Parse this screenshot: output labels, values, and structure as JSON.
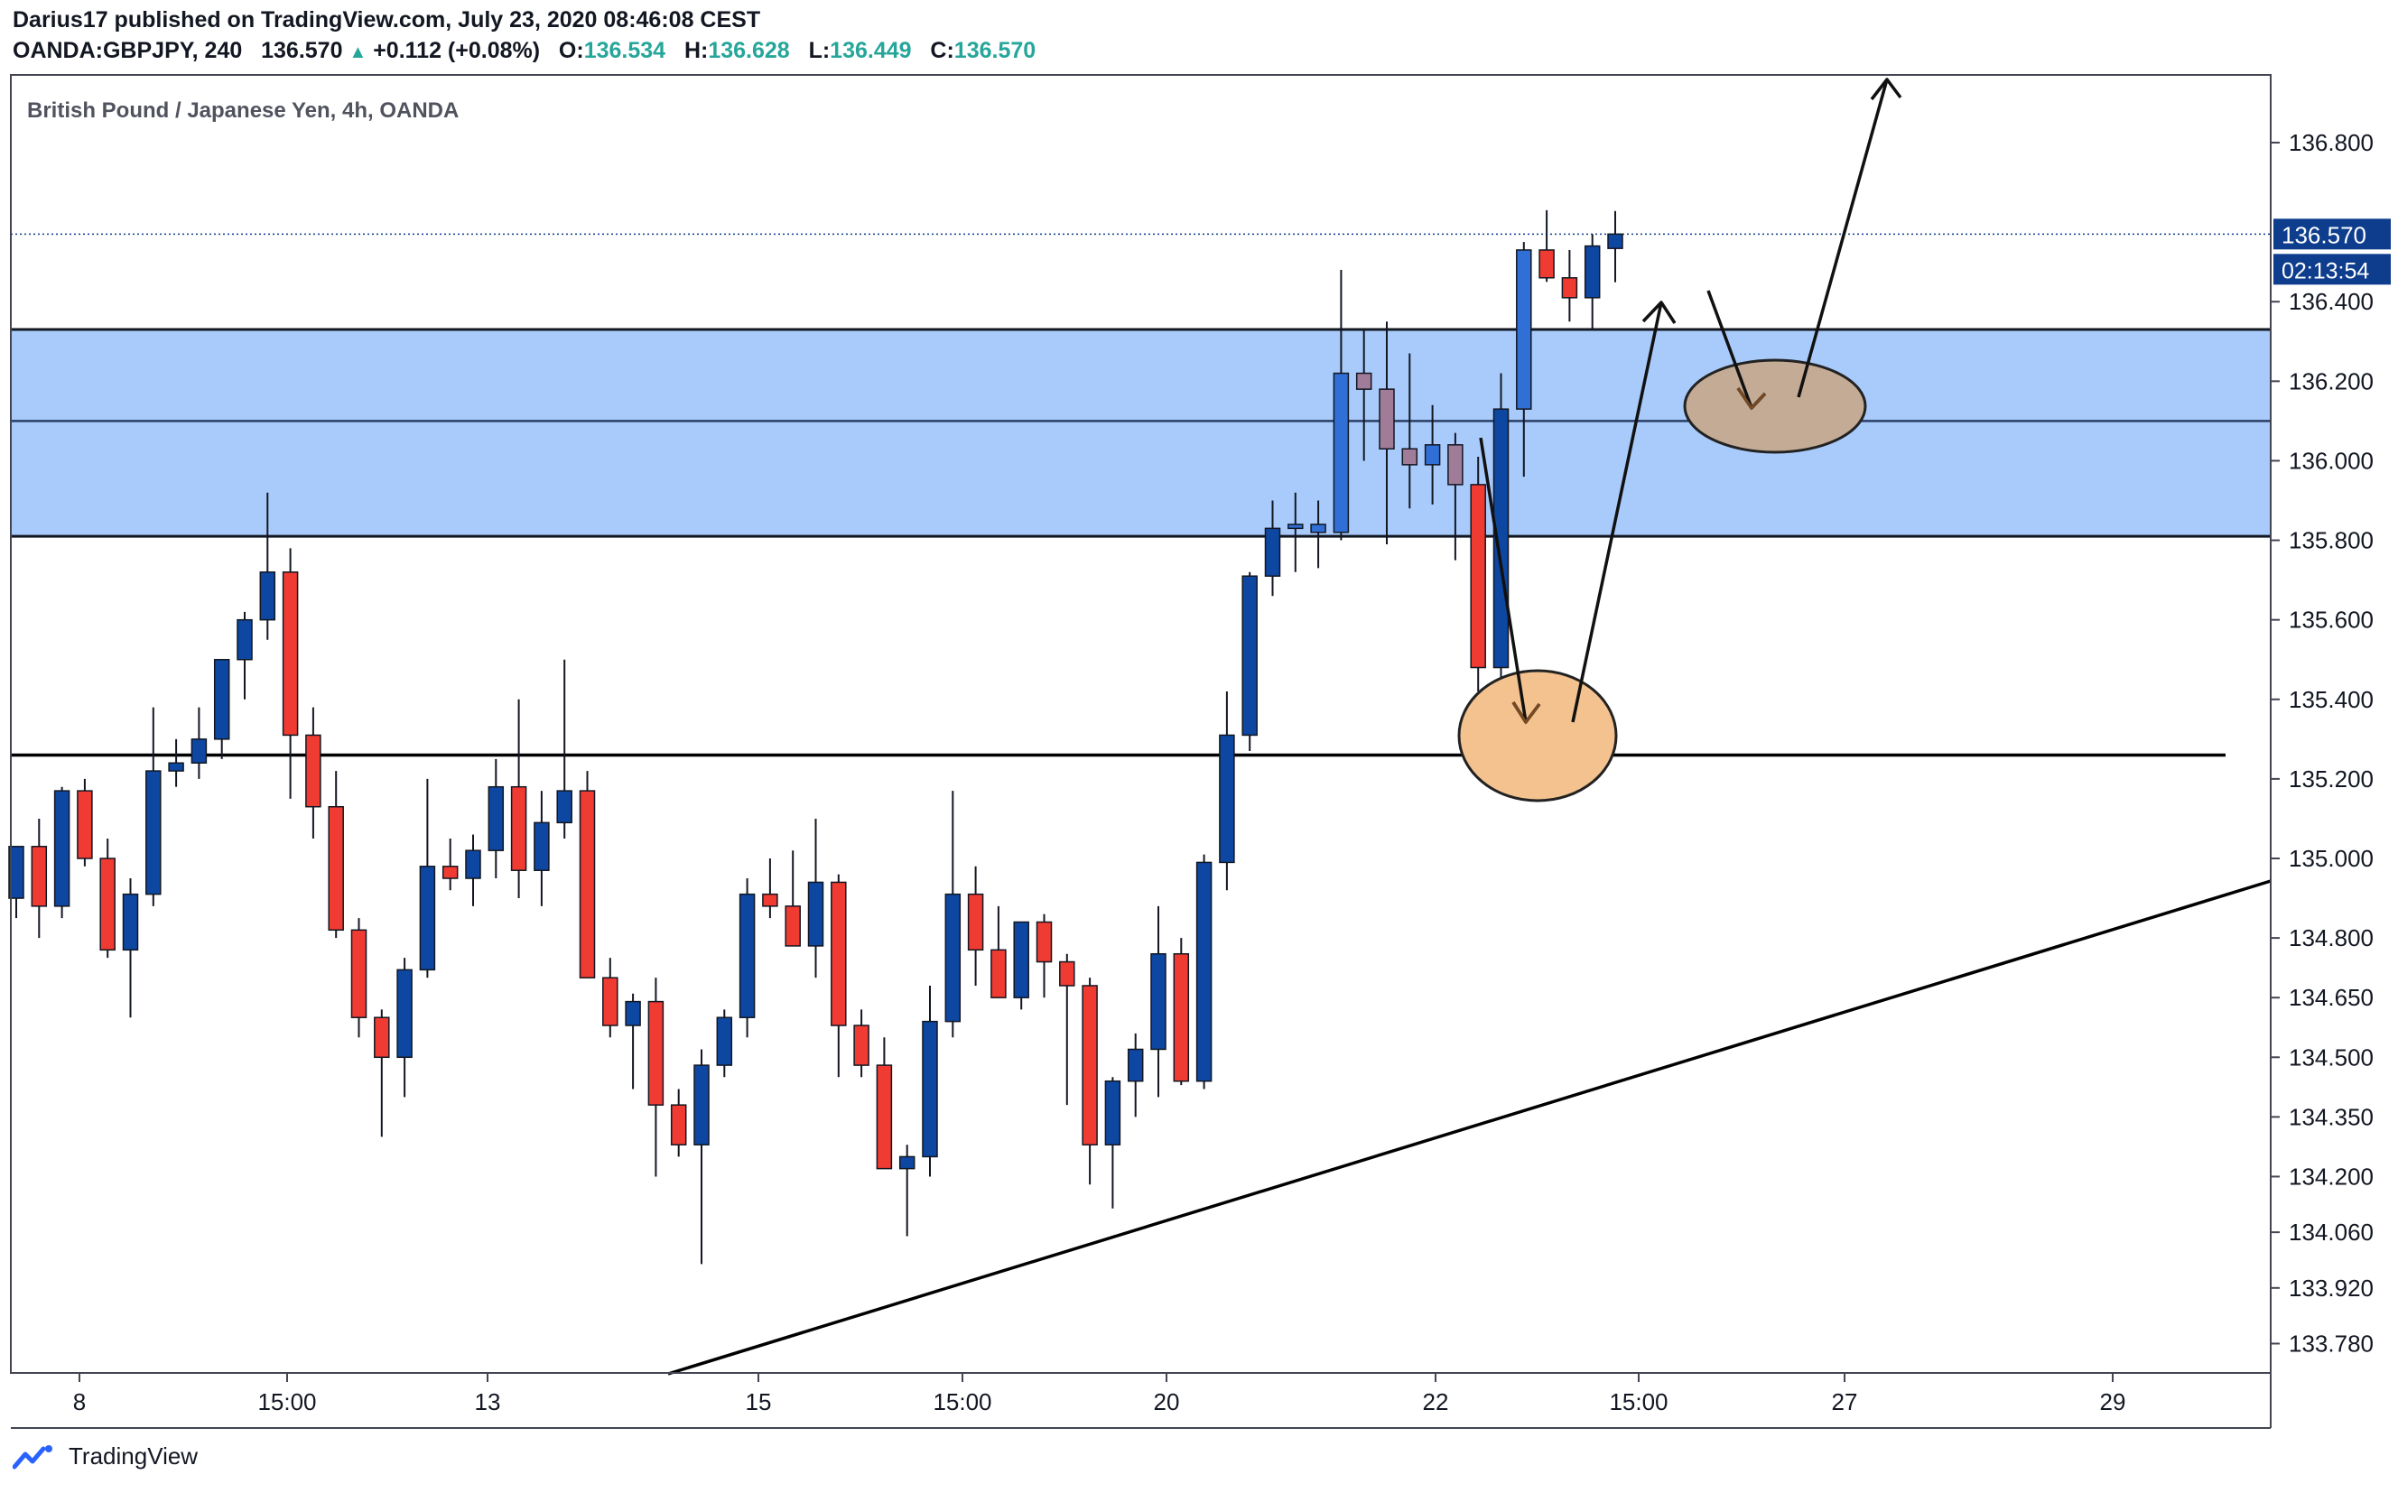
{
  "header": {
    "line1": "Darius17 published on TradingView.com, July 23, 2020 08:46:08 CEST",
    "symbol": "OANDA:GBPJPY, 240",
    "last": "136.570",
    "change": "+0.112 (+0.08%)",
    "o_label": "O:",
    "o": "136.534",
    "h_label": "H:",
    "h": "136.628",
    "l_label": "L:",
    "l": "136.449",
    "c_label": "C:",
    "c": "136.570"
  },
  "footer": {
    "brand": "TradingView"
  },
  "colors": {
    "up": "#0d47a1",
    "down": "#ef3b32",
    "zone": "#a9cbfb",
    "zone_candle_up": "#2f6fd6",
    "zone_candle_down": "#a07c98",
    "ellipse_low": "#f3c28f",
    "ellipse_high": "#c3ab95",
    "price_badge": "#0d3d8c"
  },
  "chart_data": {
    "type": "candlestick",
    "title": "British Pound / Japanese Yen, 4h, OANDA",
    "ylim": [
      133.7,
      137.0
    ],
    "y_ticks": [
      "136.800",
      "136.400",
      "136.200",
      "136.000",
      "135.800",
      "135.600",
      "135.400",
      "135.200",
      "135.000",
      "134.800",
      "134.650",
      "134.500",
      "134.350",
      "134.200",
      "134.060",
      "133.920",
      "133.780"
    ],
    "x_ticks": [
      "8",
      "15:00",
      "13",
      "15",
      "15:00",
      "20",
      "22",
      "15:00",
      "27",
      "29"
    ],
    "last_price": "136.570",
    "countdown": "02:13:54",
    "candles": [
      {
        "o": 134.9,
        "h": 135.0,
        "l": 134.85,
        "c": 135.03
      },
      {
        "o": 135.03,
        "h": 135.1,
        "l": 134.8,
        "c": 134.88
      },
      {
        "o": 134.88,
        "h": 135.18,
        "l": 134.85,
        "c": 135.17
      },
      {
        "o": 135.17,
        "h": 135.2,
        "l": 134.98,
        "c": 135.0
      },
      {
        "o": 135.0,
        "h": 135.05,
        "l": 134.75,
        "c": 134.77
      },
      {
        "o": 134.77,
        "h": 134.95,
        "l": 134.6,
        "c": 134.91
      },
      {
        "o": 134.91,
        "h": 135.38,
        "l": 134.88,
        "c": 135.22
      },
      {
        "o": 135.22,
        "h": 135.3,
        "l": 135.18,
        "c": 135.24
      },
      {
        "o": 135.24,
        "h": 135.38,
        "l": 135.2,
        "c": 135.3
      },
      {
        "o": 135.3,
        "h": 135.5,
        "l": 135.25,
        "c": 135.5
      },
      {
        "o": 135.5,
        "h": 135.62,
        "l": 135.4,
        "c": 135.6
      },
      {
        "o": 135.6,
        "h": 135.92,
        "l": 135.55,
        "c": 135.72
      },
      {
        "o": 135.72,
        "h": 135.78,
        "l": 135.15,
        "c": 135.31
      },
      {
        "o": 135.31,
        "h": 135.38,
        "l": 135.05,
        "c": 135.13
      },
      {
        "o": 135.13,
        "h": 135.22,
        "l": 134.8,
        "c": 134.82
      },
      {
        "o": 134.82,
        "h": 134.85,
        "l": 134.55,
        "c": 134.6
      },
      {
        "o": 134.6,
        "h": 134.62,
        "l": 134.3,
        "c": 134.5
      },
      {
        "o": 134.5,
        "h": 134.75,
        "l": 134.4,
        "c": 134.72
      },
      {
        "o": 134.72,
        "h": 135.2,
        "l": 134.7,
        "c": 134.98
      },
      {
        "o": 134.98,
        "h": 135.05,
        "l": 134.92,
        "c": 134.95
      },
      {
        "o": 134.95,
        "h": 135.06,
        "l": 134.88,
        "c": 135.02
      },
      {
        "o": 135.02,
        "h": 135.25,
        "l": 134.95,
        "c": 135.18
      },
      {
        "o": 135.18,
        "h": 135.4,
        "l": 134.9,
        "c": 134.97
      },
      {
        "o": 134.97,
        "h": 135.17,
        "l": 134.88,
        "c": 135.09
      },
      {
        "o": 135.09,
        "h": 135.5,
        "l": 135.05,
        "c": 135.17
      },
      {
        "o": 135.17,
        "h": 135.22,
        "l": 134.7,
        "c": 134.7
      },
      {
        "o": 134.7,
        "h": 134.75,
        "l": 134.55,
        "c": 134.58
      },
      {
        "o": 134.58,
        "h": 134.66,
        "l": 134.42,
        "c": 134.64
      },
      {
        "o": 134.64,
        "h": 134.7,
        "l": 134.2,
        "c": 134.38
      },
      {
        "o": 134.38,
        "h": 134.42,
        "l": 134.25,
        "c": 134.28
      },
      {
        "o": 134.28,
        "h": 134.52,
        "l": 133.98,
        "c": 134.48
      },
      {
        "o": 134.48,
        "h": 134.62,
        "l": 134.45,
        "c": 134.6
      },
      {
        "o": 134.6,
        "h": 134.95,
        "l": 134.55,
        "c": 134.91
      },
      {
        "o": 134.91,
        "h": 135.0,
        "l": 134.85,
        "c": 134.88
      },
      {
        "o": 134.88,
        "h": 135.02,
        "l": 134.78,
        "c": 134.78
      },
      {
        "o": 134.78,
        "h": 135.1,
        "l": 134.7,
        "c": 134.94
      },
      {
        "o": 134.94,
        "h": 134.96,
        "l": 134.45,
        "c": 134.58
      },
      {
        "o": 134.58,
        "h": 134.62,
        "l": 134.45,
        "c": 134.48
      },
      {
        "o": 134.48,
        "h": 134.55,
        "l": 134.25,
        "c": 134.22
      },
      {
        "o": 134.22,
        "h": 134.28,
        "l": 134.05,
        "c": 134.25
      },
      {
        "o": 134.25,
        "h": 134.68,
        "l": 134.2,
        "c": 134.59
      },
      {
        "o": 134.59,
        "h": 135.17,
        "l": 134.55,
        "c": 134.91
      },
      {
        "o": 134.91,
        "h": 134.98,
        "l": 134.68,
        "c": 134.77
      },
      {
        "o": 134.77,
        "h": 134.88,
        "l": 134.65,
        "c": 134.65
      },
      {
        "o": 134.65,
        "h": 134.83,
        "l": 134.62,
        "c": 134.84
      },
      {
        "o": 134.84,
        "h": 134.86,
        "l": 134.65,
        "c": 134.74
      },
      {
        "o": 134.74,
        "h": 134.76,
        "l": 134.38,
        "c": 134.68
      },
      {
        "o": 134.68,
        "h": 134.7,
        "l": 134.18,
        "c": 134.28
      },
      {
        "o": 134.28,
        "h": 134.45,
        "l": 134.12,
        "c": 134.44
      },
      {
        "o": 134.44,
        "h": 134.56,
        "l": 134.35,
        "c": 134.52
      },
      {
        "o": 134.52,
        "h": 134.88,
        "l": 134.4,
        "c": 134.76
      },
      {
        "o": 134.76,
        "h": 134.8,
        "l": 134.43,
        "c": 134.44
      },
      {
        "o": 134.44,
        "h": 135.01,
        "l": 134.42,
        "c": 134.99
      },
      {
        "o": 134.99,
        "h": 135.42,
        "l": 134.92,
        "c": 135.31
      },
      {
        "o": 135.31,
        "h": 135.72,
        "l": 135.27,
        "c": 135.71
      },
      {
        "o": 135.71,
        "h": 135.9,
        "l": 135.66,
        "c": 135.83
      },
      {
        "o": 135.83,
        "h": 135.92,
        "l": 135.72,
        "c": 135.84
      },
      {
        "o": 135.82,
        "h": 135.9,
        "l": 135.73,
        "c": 135.84
      },
      {
        "o": 135.82,
        "h": 136.48,
        "l": 135.8,
        "c": 136.22
      },
      {
        "o": 136.22,
        "h": 136.33,
        "l": 136.0,
        "c": 136.18
      },
      {
        "o": 136.18,
        "h": 136.35,
        "l": 135.79,
        "c": 136.03
      },
      {
        "o": 136.03,
        "h": 136.27,
        "l": 135.88,
        "c": 135.99
      },
      {
        "o": 135.99,
        "h": 136.14,
        "l": 135.89,
        "c": 136.04
      },
      {
        "o": 136.04,
        "h": 136.07,
        "l": 135.75,
        "c": 135.94
      },
      {
        "o": 135.94,
        "h": 136.01,
        "l": 135.42,
        "c": 135.48
      },
      {
        "o": 135.48,
        "h": 136.22,
        "l": 135.35,
        "c": 136.13
      },
      {
        "o": 136.13,
        "h": 136.55,
        "l": 135.96,
        "c": 136.53
      },
      {
        "o": 136.53,
        "h": 136.63,
        "l": 136.45,
        "c": 136.46
      },
      {
        "o": 136.46,
        "h": 136.53,
        "l": 136.35,
        "c": 136.41
      },
      {
        "o": 136.41,
        "h": 136.57,
        "l": 136.33,
        "c": 136.54
      },
      {
        "o": 136.534,
        "h": 136.628,
        "l": 136.449,
        "c": 136.57
      }
    ],
    "zone": {
      "top": 136.33,
      "bottom": 135.81,
      "mid": 136.1
    },
    "support": 135.26
  }
}
